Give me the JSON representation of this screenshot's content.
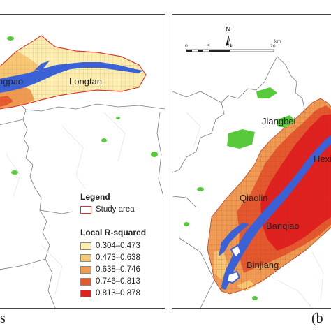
{
  "left_panel": {
    "labels": {
      "place_west": "ngpao",
      "place_east": "Longtan"
    },
    "legend": {
      "title": "Legend",
      "study_area": "Study area",
      "subtitle": "Local R-squared",
      "classes": [
        {
          "range": "0.304–0.473",
          "color": "#fbeeb0"
        },
        {
          "range": "0.473–0.638",
          "color": "#f6c774"
        },
        {
          "range": "0.638–0.746",
          "color": "#ee9a52"
        },
        {
          "range": "0.746–0.813",
          "color": "#e4582e"
        },
        {
          "range": "0.813–0.878",
          "color": "#e01f1f"
        }
      ]
    },
    "tag": "s"
  },
  "right_panel": {
    "north_label": "N",
    "scale": {
      "ticks": [
        "0",
        "5",
        "10",
        "20"
      ],
      "unit": "km"
    },
    "labels": {
      "jiangbei": "Jiangbei",
      "hexi": "Hexi",
      "qiaolin": "Qiaolin",
      "banqiao": "Banqiao",
      "binjiang": "Binjiang"
    },
    "tag": "(b"
  },
  "colors": {
    "river": "#3a62d6",
    "green_space": "#58c93a",
    "boundary_line": "#7a7a7a",
    "study_area_outline": "#d9362b"
  }
}
